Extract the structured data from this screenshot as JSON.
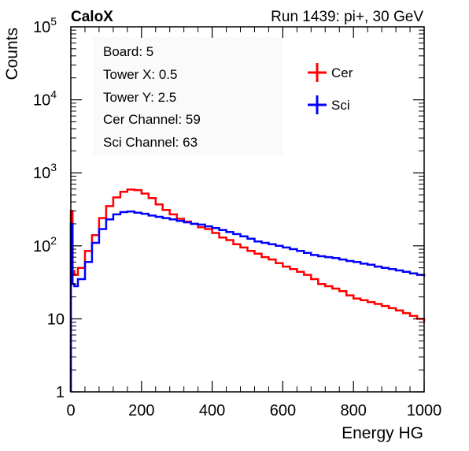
{
  "header": {
    "experiment": "CaloX",
    "run_info": "Run 1439: pi+, 30 GeV"
  },
  "info_box": [
    "Board: 5",
    "Tower X: 0.5",
    "Tower Y: 2.5",
    "Cer Channel: 59",
    "Sci Channel: 63"
  ],
  "colors": {
    "cer": "#ff0000",
    "sci": "#0000ff",
    "axis": "#000000"
  },
  "chart_data": {
    "type": "line",
    "title": "",
    "xlabel": "Energy HG",
    "ylabel": "Counts",
    "xlim": [
      0,
      1000
    ],
    "ylim": [
      1,
      100000
    ],
    "yscale": "log",
    "grid": false,
    "legend_position": "top-right",
    "x_ticks": [
      0,
      200,
      400,
      600,
      800,
      1000
    ],
    "y_ticks": [
      {
        "value": 1,
        "base": "1",
        "exp": ""
      },
      {
        "value": 10,
        "base": "10",
        "exp": ""
      },
      {
        "value": 100,
        "base": "10",
        "exp": "2"
      },
      {
        "value": 1000,
        "base": "10",
        "exp": "3"
      },
      {
        "value": 10000,
        "base": "10",
        "exp": "4"
      },
      {
        "value": 100000,
        "base": "10",
        "exp": "5"
      }
    ],
    "series": [
      {
        "name": "Cer",
        "color": "#ff0000",
        "x": [
          0,
          5,
          10,
          20,
          40,
          60,
          80,
          100,
          120,
          140,
          160,
          180,
          200,
          220,
          240,
          260,
          280,
          300,
          320,
          340,
          360,
          380,
          400,
          420,
          440,
          460,
          480,
          500,
          520,
          540,
          560,
          580,
          600,
          620,
          640,
          660,
          680,
          700,
          720,
          740,
          760,
          780,
          800,
          820,
          840,
          860,
          880,
          900,
          920,
          940,
          960,
          980,
          1000
        ],
        "y": [
          300,
          45,
          40,
          50,
          85,
          140,
          240,
          350,
          460,
          550,
          590,
          580,
          520,
          450,
          370,
          310,
          270,
          235,
          215,
          200,
          180,
          170,
          150,
          130,
          120,
          105,
          95,
          85,
          78,
          70,
          65,
          58,
          52,
          48,
          44,
          40,
          35,
          30,
          28,
          26,
          24,
          21,
          19,
          18,
          17,
          16,
          15,
          14,
          13,
          12,
          11,
          10,
          9
        ]
      },
      {
        "name": "Sci",
        "color": "#0000ff",
        "x": [
          0,
          5,
          10,
          20,
          40,
          60,
          80,
          100,
          120,
          140,
          160,
          180,
          200,
          220,
          240,
          260,
          280,
          300,
          320,
          340,
          360,
          380,
          400,
          420,
          440,
          460,
          480,
          500,
          520,
          540,
          560,
          580,
          600,
          620,
          640,
          660,
          680,
          700,
          720,
          740,
          760,
          780,
          800,
          820,
          840,
          860,
          880,
          900,
          920,
          940,
          960,
          980,
          1000
        ],
        "y": [
          200,
          30,
          28,
          35,
          60,
          110,
          170,
          230,
          270,
          290,
          295,
          285,
          275,
          260,
          250,
          240,
          230,
          220,
          210,
          200,
          195,
          185,
          175,
          165,
          155,
          145,
          135,
          125,
          115,
          110,
          105,
          100,
          95,
          90,
          85,
          80,
          75,
          72,
          70,
          68,
          65,
          62,
          60,
          57,
          55,
          52,
          50,
          48,
          46,
          44,
          42,
          40,
          38
        ]
      }
    ]
  }
}
